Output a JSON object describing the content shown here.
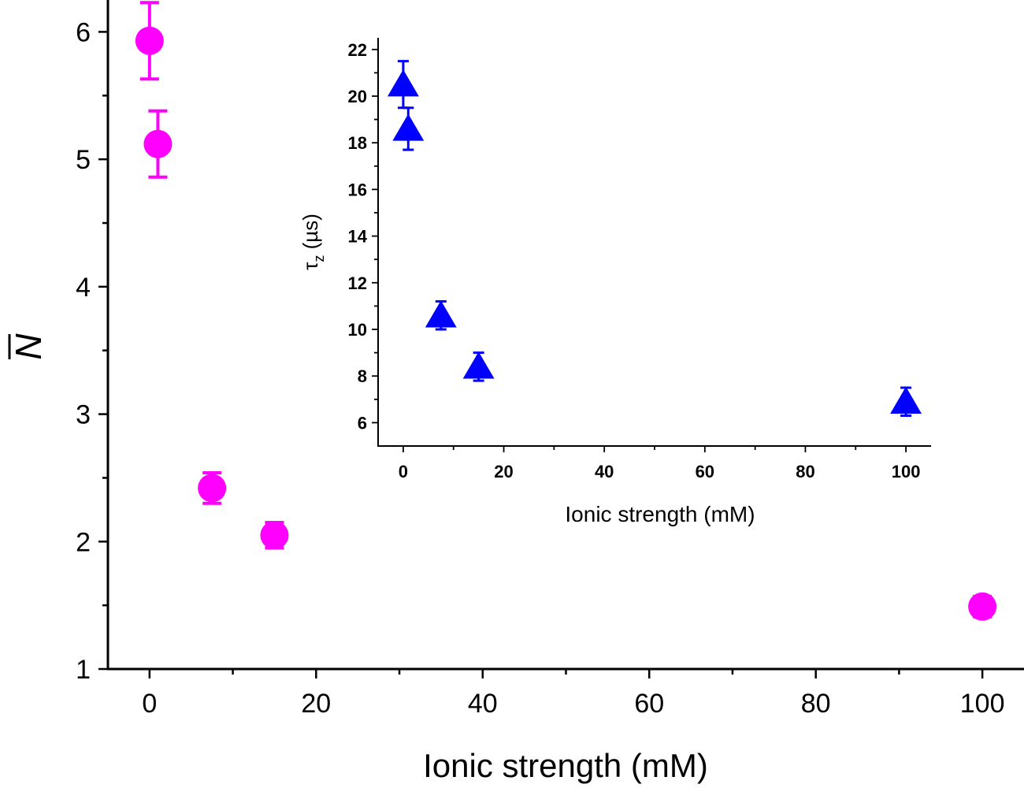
{
  "chart_data": [
    {
      "type": "scatter",
      "role": "main",
      "xlabel": "Ionic strength (mM)",
      "ylabel": "N",
      "ylabel_overbar": true,
      "xlim": [
        -5,
        105
      ],
      "ylim": [
        1,
        6.25
      ],
      "xticks": [
        0,
        20,
        40,
        60,
        80,
        100
      ],
      "yticks": [
        1,
        2,
        3,
        4,
        5,
        6
      ],
      "xtick_labels": [
        "0",
        "20",
        "40",
        "60",
        "80",
        "100"
      ],
      "ytick_labels": [
        "1",
        "2",
        "3",
        "4",
        "5",
        "6"
      ],
      "marker": "circle",
      "color": "#ff00ff",
      "series": [
        {
          "name": "N",
          "points": [
            {
              "x": 0,
              "y": 5.93,
              "err": 0.3
            },
            {
              "x": 1,
              "y": 5.12,
              "err": 0.26
            },
            {
              "x": 7.5,
              "y": 2.42,
              "err": 0.12
            },
            {
              "x": 15,
              "y": 2.05,
              "err": 0.1
            },
            {
              "x": 100,
              "y": 1.49,
              "err": 0.08
            }
          ]
        }
      ]
    },
    {
      "type": "scatter",
      "role": "inset",
      "xlabel": "Ionic strength (mM)",
      "ylabel": "τz (µs)",
      "ylabel_main": "τ",
      "ylabel_sub": "z",
      "ylabel_unit": " (µs)",
      "xlim": [
        -5,
        105
      ],
      "ylim": [
        5,
        22.5
      ],
      "xticks": [
        0,
        20,
        40,
        60,
        80,
        100
      ],
      "yticks": [
        6,
        8,
        10,
        12,
        14,
        16,
        18,
        20,
        22
      ],
      "xtick_labels": [
        "0",
        "20",
        "40",
        "60",
        "80",
        "100"
      ],
      "ytick_labels": [
        "6",
        "8",
        "10",
        "12",
        "14",
        "16",
        "18",
        "20",
        "22"
      ],
      "marker": "triangle",
      "color": "#0000ff",
      "series": [
        {
          "name": "tau_z",
          "points": [
            {
              "x": 0,
              "y": 20.5,
              "err": 1.0
            },
            {
              "x": 1,
              "y": 18.6,
              "err": 0.9
            },
            {
              "x": 7.5,
              "y": 10.6,
              "err": 0.6
            },
            {
              "x": 15,
              "y": 8.4,
              "err": 0.6
            },
            {
              "x": 100,
              "y": 6.9,
              "err": 0.6
            }
          ]
        }
      ]
    }
  ]
}
